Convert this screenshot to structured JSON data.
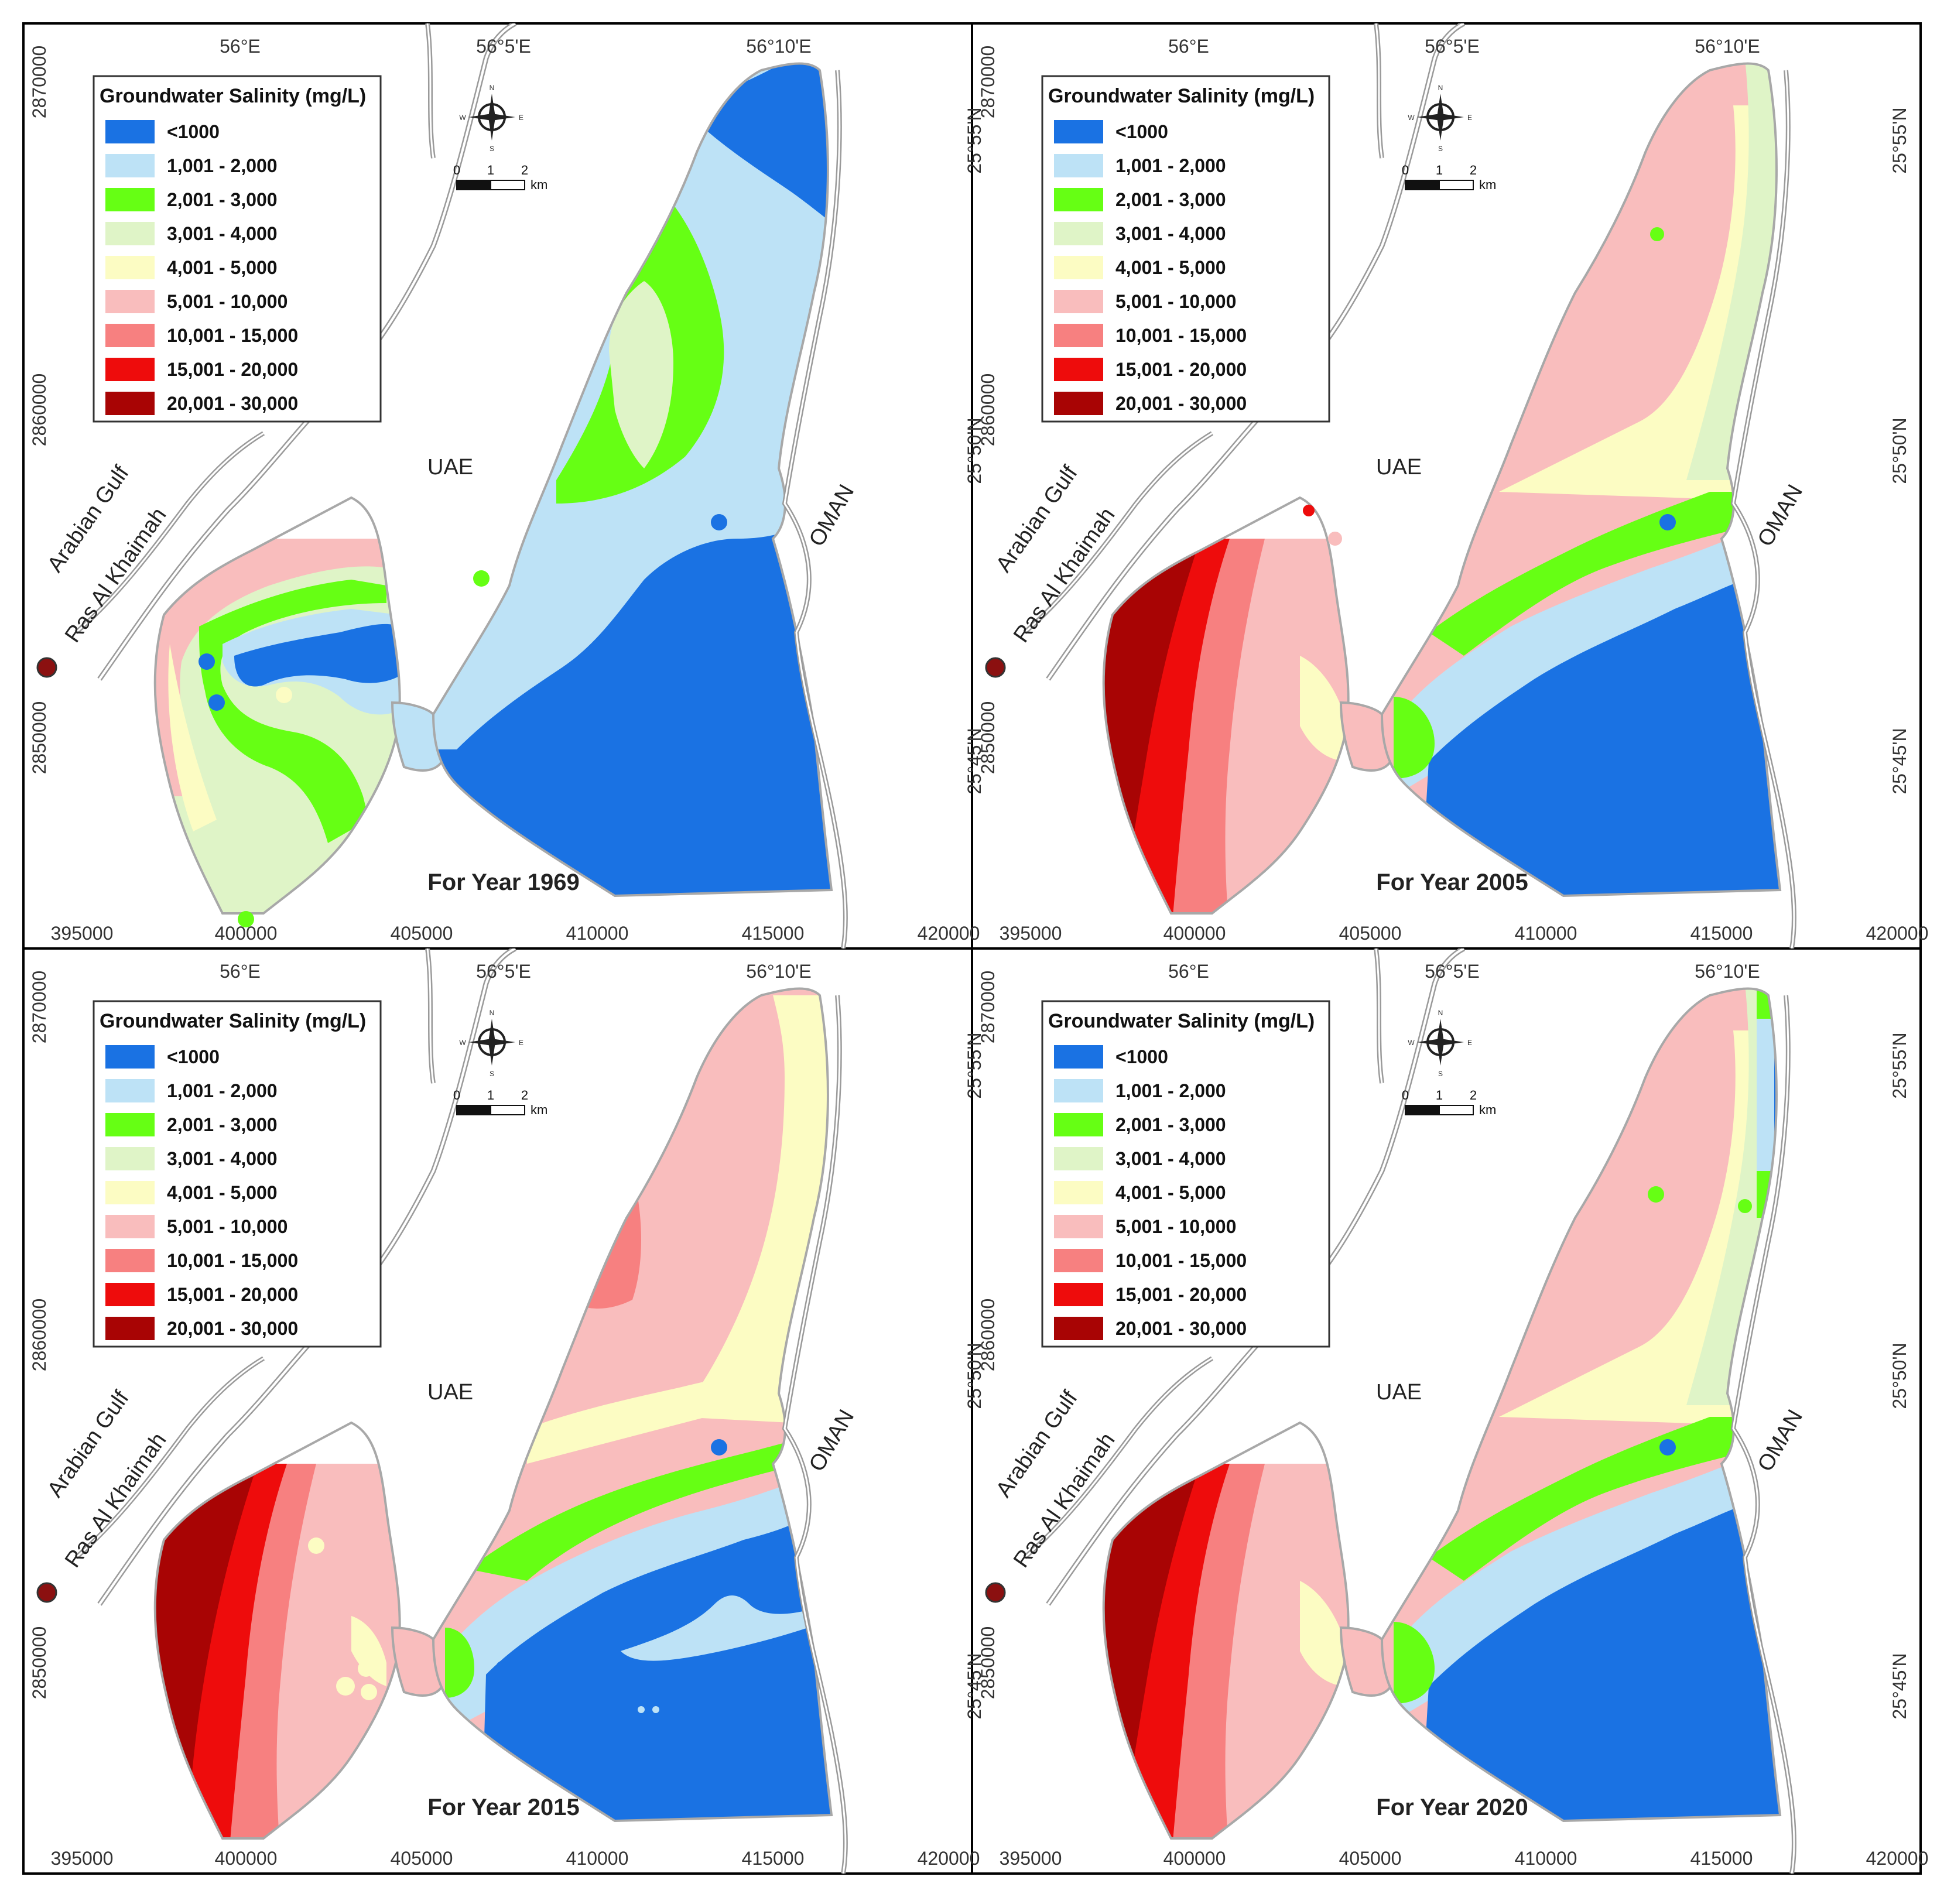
{
  "legend": {
    "title": "Groundwater Salinity (mg/L)",
    "classes": [
      {
        "label": "<1000",
        "color": "#1a72e3"
      },
      {
        "label": "1,001 - 2,000",
        "color": "#bde2f6"
      },
      {
        "label": "2,001 - 3,000",
        "color": "#66ff14"
      },
      {
        "label": "3,001 - 4,000",
        "color": "#dff4c7"
      },
      {
        "label": "4,001 - 5,000",
        "color": "#fcfcc3"
      },
      {
        "label": "5,001 - 10,000",
        "color": "#f9bdbd"
      },
      {
        "label": "10,001 - 15,000",
        "color": "#f78080"
      },
      {
        "label": "15,001 - 20,000",
        "color": "#ee0c0c"
      },
      {
        "label": "20,001 - 30,000",
        "color": "#a80404"
      }
    ]
  },
  "axes": {
    "top_ticks": [
      "56°E",
      "56°5'E",
      "56°10'E"
    ],
    "bottom_ticks": [
      "395000",
      "400000",
      "405000",
      "410000",
      "415000",
      "420000"
    ],
    "left_ticks": [
      "2870000",
      "2860000",
      "2850000"
    ],
    "right_ticks": [
      "25°55'N",
      "25°50'N",
      "25°45'N"
    ]
  },
  "labels": {
    "uae": "UAE",
    "oman": "OMAN",
    "gulf": "Arabian Gulf",
    "city": "Ras Al Khaimah"
  },
  "scale": {
    "ticks": [
      "0",
      "1",
      "2"
    ],
    "unit": "km"
  },
  "compass": {
    "n": "N",
    "s": "S",
    "e": "E",
    "w": "W"
  },
  "panels": [
    {
      "title": "For Year 1969"
    },
    {
      "title": "For Year 2005"
    },
    {
      "title": "For Year 2015"
    },
    {
      "title": "For Year 2020"
    }
  ]
}
